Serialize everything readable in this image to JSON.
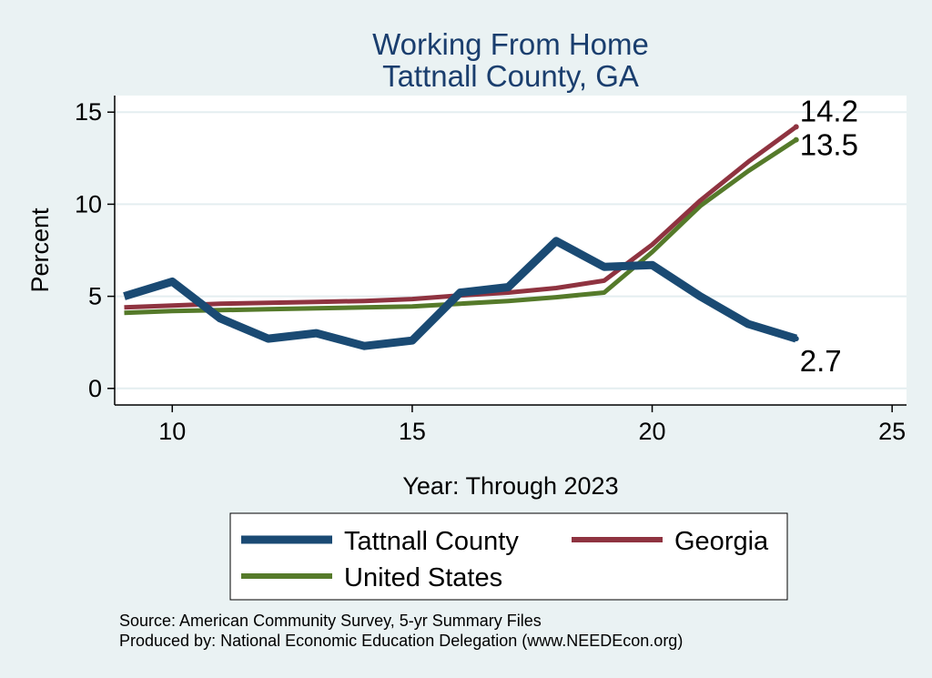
{
  "chart_data": {
    "type": "line",
    "title": [
      "Working From Home",
      "Tattnall County, GA"
    ],
    "xlabel": "Year: Through 2023",
    "ylabel": "Percent",
    "xlim": [
      8.8,
      25.3
    ],
    "ylim": [
      -0.9,
      15.9
    ],
    "xticks": [
      10,
      15,
      20,
      25
    ],
    "yticks": [
      0,
      5,
      10,
      15
    ],
    "grid": true,
    "legend_position": "bottom",
    "series": [
      {
        "name": "Tattnall County",
        "color": "#1a4a73",
        "x": [
          9,
          10,
          11,
          12,
          13,
          14,
          15,
          16,
          17,
          18,
          19,
          20,
          21,
          22,
          23
        ],
        "values": [
          5.0,
          5.8,
          3.8,
          2.7,
          3.0,
          2.3,
          2.6,
          5.2,
          5.5,
          8.0,
          6.6,
          6.7,
          5.0,
          3.5,
          2.7
        ],
        "end_label": "2.7"
      },
      {
        "name": "Georgia",
        "color": "#8f3340",
        "x": [
          9,
          10,
          11,
          12,
          13,
          14,
          15,
          16,
          17,
          18,
          19,
          20,
          21,
          22,
          23
        ],
        "values": [
          4.4,
          4.5,
          4.6,
          4.65,
          4.7,
          4.75,
          4.85,
          5.05,
          5.2,
          5.45,
          5.85,
          7.8,
          10.2,
          12.3,
          14.2
        ],
        "end_label": "14.2"
      },
      {
        "name": "United States",
        "color": "#557a2a",
        "x": [
          9,
          10,
          11,
          12,
          13,
          14,
          15,
          16,
          17,
          18,
          19,
          20,
          21,
          22,
          23
        ],
        "values": [
          4.1,
          4.2,
          4.25,
          4.3,
          4.35,
          4.4,
          4.45,
          4.6,
          4.75,
          4.95,
          5.2,
          7.4,
          9.9,
          11.8,
          13.5
        ],
        "end_label": "13.5"
      }
    ],
    "notes": [
      "Source: American Community Survey, 5-yr Summary Files",
      "Produced by: National Economic Education Delegation (www.NEEDEcon.org)"
    ]
  }
}
